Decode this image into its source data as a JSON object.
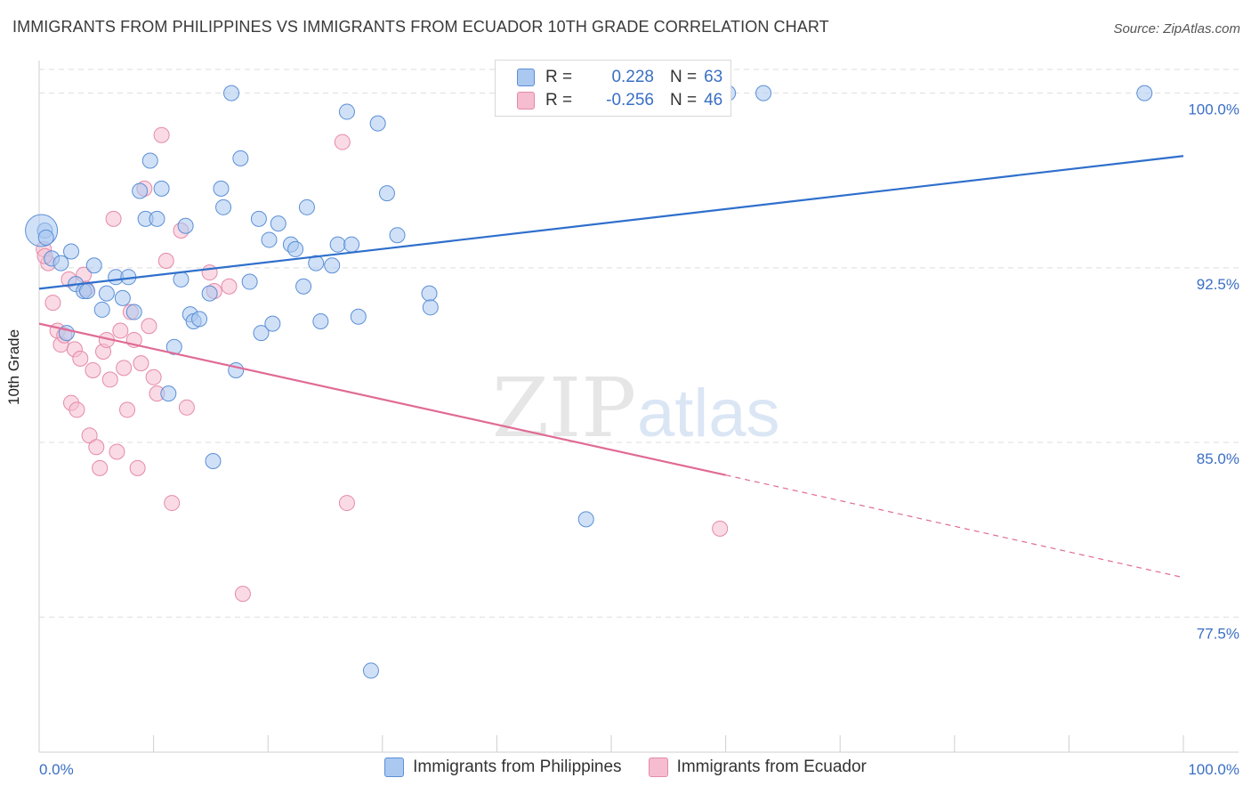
{
  "header": {
    "title": "IMMIGRANTS FROM PHILIPPINES VS IMMIGRANTS FROM ECUADOR 10TH GRADE CORRELATION CHART",
    "source": "Source: ZipAtlas.com"
  },
  "watermark": {
    "zip": "ZIP",
    "atlas": "atlas"
  },
  "legend": {
    "rows": [
      {
        "r_label": "R =",
        "r_value": "0.228",
        "n_label": "N =",
        "n_value": "63"
      },
      {
        "r_label": "R =",
        "r_value": "-0.256",
        "n_label": "N =",
        "n_value": "46"
      }
    ]
  },
  "colors": {
    "blue_fill": "#aac8f0",
    "blue_stroke": "#5b8fd6",
    "blue_line": "#2f6fcc",
    "pink_fill": "#f6bdd0",
    "pink_stroke": "#e48aa8",
    "pink_line": "#e06b95",
    "grid": "#dddddd",
    "tick_text": "#3a6fc4"
  },
  "chart_data": {
    "type": "scatter",
    "title": "IMMIGRANTS FROM PHILIPPINES VS IMMIGRANTS FROM ECUADOR 10TH GRADE CORRELATION CHART",
    "xlabel": "",
    "ylabel": "10th Grade",
    "xlim": [
      0,
      100
    ],
    "ylim": [
      71.7,
      101.4
    ],
    "x_tick_labels": [
      "0.0%",
      "100.0%"
    ],
    "y_ticks": [
      {
        "value": 77.5,
        "label": "77.5%"
      },
      {
        "value": 85.0,
        "label": "85.0%"
      },
      {
        "value": 92.5,
        "label": "92.5%"
      },
      {
        "value": 100.0,
        "label": "100.0%"
      }
    ],
    "grid": true,
    "legend_position": "top-center",
    "series": [
      {
        "name": "Immigrants from Philippines",
        "R": 0.228,
        "N": 63,
        "trend": {
          "x0": 0,
          "y0": 91.6,
          "x1": 100,
          "y1": 97.3
        },
        "points": [
          [
            0.5,
            94.1
          ],
          [
            1.1,
            92.9
          ],
          [
            1.9,
            92.7
          ],
          [
            2.4,
            89.7
          ],
          [
            2.8,
            93.2
          ],
          [
            3.2,
            91.8
          ],
          [
            3.9,
            91.5
          ],
          [
            4.2,
            91.5
          ],
          [
            4.8,
            92.6
          ],
          [
            5.5,
            90.7
          ],
          [
            5.9,
            91.4
          ],
          [
            6.7,
            92.1
          ],
          [
            7.3,
            91.2
          ],
          [
            7.8,
            92.1
          ],
          [
            8.3,
            90.6
          ],
          [
            8.8,
            95.8
          ],
          [
            9.3,
            94.6
          ],
          [
            9.7,
            97.1
          ],
          [
            10.3,
            94.6
          ],
          [
            10.7,
            95.9
          ],
          [
            11.3,
            87.1
          ],
          [
            11.8,
            89.1
          ],
          [
            12.4,
            92.0
          ],
          [
            12.8,
            94.3
          ],
          [
            13.2,
            90.5
          ],
          [
            13.5,
            90.2
          ],
          [
            14.0,
            90.3
          ],
          [
            14.9,
            91.4
          ],
          [
            15.2,
            84.2
          ],
          [
            15.9,
            95.9
          ],
          [
            16.1,
            95.1
          ],
          [
            16.8,
            100.0
          ],
          [
            17.2,
            88.1
          ],
          [
            17.6,
            97.2
          ],
          [
            18.4,
            91.9
          ],
          [
            19.2,
            94.6
          ],
          [
            19.4,
            89.7
          ],
          [
            20.1,
            93.7
          ],
          [
            20.4,
            90.1
          ],
          [
            20.9,
            94.4
          ],
          [
            22.0,
            93.5
          ],
          [
            22.4,
            93.3
          ],
          [
            23.1,
            91.7
          ],
          [
            23.4,
            95.1
          ],
          [
            24.2,
            92.7
          ],
          [
            24.6,
            90.2
          ],
          [
            25.6,
            92.6
          ],
          [
            26.1,
            93.5
          ],
          [
            26.9,
            99.2
          ],
          [
            27.3,
            93.5
          ],
          [
            27.9,
            90.4
          ],
          [
            29.0,
            75.2
          ],
          [
            29.6,
            98.7
          ],
          [
            30.4,
            95.7
          ],
          [
            31.3,
            93.9
          ],
          [
            34.1,
            91.4
          ],
          [
            34.2,
            90.8
          ],
          [
            47.8,
            81.7
          ],
          [
            60.2,
            100.0
          ],
          [
            63.3,
            100.0
          ],
          [
            96.6,
            100.0
          ],
          [
            0.2,
            94.1
          ],
          [
            0.6,
            93.8
          ]
        ]
      },
      {
        "name": "Immigrants from Ecuador",
        "R": -0.256,
        "N": 46,
        "trend": {
          "x0": 0,
          "y0": 90.1,
          "x1": 60,
          "y1": 83.6,
          "dash_x1": 100,
          "dash_y1": 79.2
        },
        "points": [
          [
            0.4,
            93.3
          ],
          [
            0.8,
            92.7
          ],
          [
            1.2,
            91.0
          ],
          [
            1.6,
            89.8
          ],
          [
            1.9,
            89.2
          ],
          [
            2.2,
            89.6
          ],
          [
            2.6,
            92.0
          ],
          [
            2.8,
            86.7
          ],
          [
            3.1,
            89.0
          ],
          [
            3.3,
            86.4
          ],
          [
            3.6,
            88.6
          ],
          [
            3.9,
            92.2
          ],
          [
            4.1,
            91.6
          ],
          [
            4.4,
            85.3
          ],
          [
            4.7,
            88.1
          ],
          [
            5.0,
            84.8
          ],
          [
            5.3,
            83.9
          ],
          [
            5.6,
            88.9
          ],
          [
            5.9,
            89.4
          ],
          [
            6.2,
            87.7
          ],
          [
            6.5,
            94.6
          ],
          [
            6.8,
            84.6
          ],
          [
            7.1,
            89.8
          ],
          [
            7.4,
            88.2
          ],
          [
            7.7,
            86.4
          ],
          [
            8.0,
            90.6
          ],
          [
            8.3,
            89.4
          ],
          [
            8.6,
            83.9
          ],
          [
            8.9,
            88.4
          ],
          [
            9.2,
            95.9
          ],
          [
            9.6,
            90.0
          ],
          [
            10.0,
            87.8
          ],
          [
            10.3,
            87.1
          ],
          [
            10.7,
            98.2
          ],
          [
            11.1,
            92.8
          ],
          [
            11.6,
            82.4
          ],
          [
            12.4,
            94.1
          ],
          [
            12.9,
            86.5
          ],
          [
            14.9,
            92.3
          ],
          [
            15.3,
            91.5
          ],
          [
            16.6,
            91.7
          ],
          [
            17.8,
            78.5
          ],
          [
            26.5,
            97.9
          ],
          [
            26.9,
            82.4
          ],
          [
            59.5,
            81.3
          ],
          [
            0.5,
            93.0
          ]
        ]
      }
    ]
  },
  "bottom_legend": [
    {
      "label": "Immigrants from Philippines"
    },
    {
      "label": "Immigrants from Ecuador"
    }
  ]
}
